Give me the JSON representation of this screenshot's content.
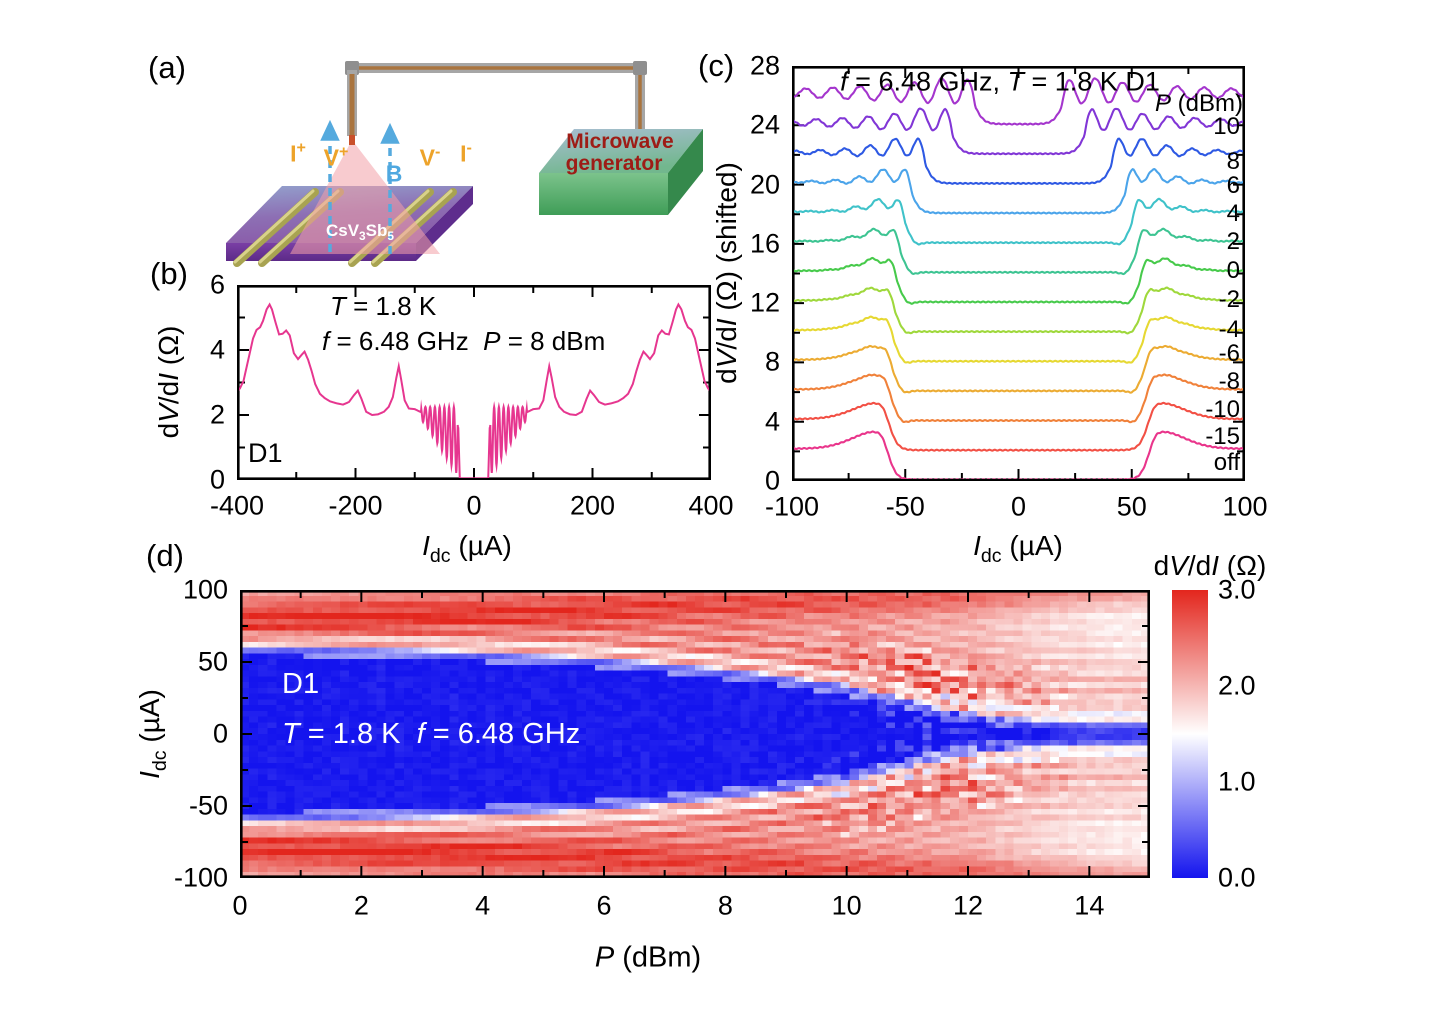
{
  "panels": {
    "a_label": "(a)",
    "b_label": "(b)",
    "c_label": "(c)",
    "d_label": "(d)"
  },
  "panel_a": {
    "electrode_labels": [
      "I^+^",
      "V^+^",
      "V^-^",
      "I^-^"
    ],
    "field_label": "B",
    "sample_label": "CsV~3~Sb~5~",
    "generator_line1": "Microwave",
    "generator_line2": "generator",
    "colors": {
      "electrode_text": "#eda32a",
      "field_text": "#4fa8e0",
      "generator_text": "#9e1c16",
      "substrate_front": "#6d35a0",
      "cone": "rgba(242,160,168,0.55)"
    }
  },
  "chart_data": [
    {
      "type": "line",
      "panel": "b",
      "device": "D1",
      "note1": "*T* = 1.8 K",
      "note2": "*f* = 6.48 GHz  *P* = 8 dBm",
      "xlabel": "*I*~dc~ (µA)",
      "ylabel": "d*V*/d*I* (Ω)",
      "xlim": [
        -400,
        400
      ],
      "ylim": [
        0,
        6
      ],
      "xticks": [
        -400,
        -200,
        0,
        200,
        400
      ],
      "xminor": [
        -300,
        -100,
        100,
        300
      ],
      "yticks": [
        0,
        2,
        4,
        6
      ],
      "yminor": [
        1,
        3,
        5
      ],
      "color": "#e6368f",
      "half_curve_anchors": [
        [
          0,
          0.05
        ],
        [
          24,
          0.05
        ],
        [
          26.5,
          1.6
        ],
        [
          91,
          2.1
        ],
        [
          100,
          2.18
        ],
        [
          110,
          2.2
        ],
        [
          117,
          2.45
        ],
        [
          123,
          3.1
        ],
        [
          127,
          3.5
        ],
        [
          131,
          3.15
        ],
        [
          137,
          2.55
        ],
        [
          144,
          2.25
        ],
        [
          152,
          2.1
        ],
        [
          162,
          2.02
        ],
        [
          172,
          2.0
        ],
        [
          182,
          2.1
        ],
        [
          190,
          2.5
        ],
        [
          196,
          2.75
        ],
        [
          203,
          2.6
        ],
        [
          211,
          2.4
        ],
        [
          221,
          2.32
        ],
        [
          232,
          2.36
        ],
        [
          243,
          2.42
        ],
        [
          252,
          2.52
        ],
        [
          260,
          2.65
        ],
        [
          268,
          2.95
        ],
        [
          274,
          3.35
        ],
        [
          280,
          3.7
        ],
        [
          286,
          3.95
        ],
        [
          291,
          3.85
        ],
        [
          297,
          3.72
        ],
        [
          304,
          3.9
        ],
        [
          311,
          4.45
        ],
        [
          317,
          4.6
        ],
        [
          323,
          4.5
        ],
        [
          329,
          4.48
        ],
        [
          335,
          4.85
        ],
        [
          341,
          5.25
        ],
        [
          345,
          5.4
        ],
        [
          350,
          5.25
        ],
        [
          356,
          4.9
        ],
        [
          361,
          4.7
        ],
        [
          367,
          4.62
        ],
        [
          373,
          4.35
        ],
        [
          381,
          3.7
        ],
        [
          389,
          3.05
        ],
        [
          395,
          2.82
        ],
        [
          400,
          2.72
        ]
      ],
      "oscillation": {
        "start": 27.5,
        "end": 89,
        "center0": 30,
        "period": 8,
        "top": 2.25,
        "low_start": 0.22,
        "low_end": 1.78
      }
    },
    {
      "type": "line-waterfall",
      "panel": "c",
      "title": "*f* = 6.48 GHz, *T* = 1.8 K D1",
      "legend_title": "*P* (dBm)",
      "xlabel": "*I*~dc~ (µA)",
      "ylabel": "d*V*/d*I* (Ω) (shifted)",
      "xlim": [
        -100,
        100
      ],
      "ylim": [
        0,
        28
      ],
      "xticks": [
        -100,
        -50,
        0,
        50,
        100
      ],
      "xminor": [
        -75,
        -25,
        25,
        75
      ],
      "yticks": [
        0,
        4,
        8,
        12,
        16,
        20,
        24,
        28
      ],
      "yminor": [
        2,
        6,
        10,
        14,
        18,
        22,
        26
      ],
      "normal_resistance_ohm": 2.1,
      "shift_step_ohm": 2,
      "curves": [
        {
          "label": "10",
          "color": "#a435cd",
          "shift": 24,
          "label_y": 23.9,
          "w": 19,
          "peak": 0.25,
          "oscA": 1.05,
          "oscL": 12,
          "oscT": 60
        },
        {
          "label": "8",
          "color": "#8136d6",
          "shift": 22,
          "label_y": 21.5,
          "w": 29,
          "peak": 0.35,
          "oscA": 1.0,
          "oscL": 11.5,
          "oscT": 42
        },
        {
          "label": "6",
          "color": "#2e59e3",
          "shift": 20,
          "label_y": 19.9,
          "w": 41,
          "peak": 0.5,
          "oscA": 0.92,
          "oscL": 11,
          "oscT": 26
        },
        {
          "label": "4",
          "color": "#4ba4ea",
          "shift": 18,
          "label_y": 18.0,
          "w": 47,
          "peak": 0.6,
          "oscA": 0.8,
          "oscL": 10.5,
          "oscT": 18
        },
        {
          "label": "2",
          "color": "#3fc2c9",
          "shift": 16,
          "label_y": 16.1,
          "w": 50,
          "peak": 0.7,
          "oscA": 0.68,
          "oscL": 10,
          "oscT": 14
        },
        {
          "label": "0",
          "color": "#3dc492",
          "shift": 14,
          "label_y": 14.2,
          "w": 52,
          "peak": 0.78,
          "oscA": 0.55,
          "oscL": 10,
          "oscT": 12
        },
        {
          "label": "-2",
          "color": "#47ca4b",
          "shift": 12,
          "label_y": 12.2,
          "w": 53.5,
          "peak": 0.85,
          "oscA": 0.45,
          "oscL": 9.5,
          "oscT": 10
        },
        {
          "label": "-4",
          "color": "#9fd83c",
          "shift": 10,
          "label_y": 10.2,
          "w": 54.5,
          "peak": 0.9,
          "oscA": 0.35,
          "oscL": 9.5,
          "oscT": 9
        },
        {
          "label": "-6",
          "color": "#e6d832",
          "shift": 8,
          "label_y": 8.6,
          "w": 55,
          "peak": 0.95,
          "oscA": 0.28,
          "oscL": 9,
          "oscT": 8
        },
        {
          "label": "-8",
          "color": "#ecab32",
          "shift": 6,
          "label_y": 6.7,
          "w": 55.5,
          "peak": 1.0,
          "oscA": 0.2,
          "oscL": 9,
          "oscT": 7
        },
        {
          "label": "-10",
          "color": "#f0813a",
          "shift": 4,
          "label_y": 4.8,
          "w": 56,
          "peak": 1.08,
          "oscA": 0.12,
          "oscL": 9,
          "oscT": 6
        },
        {
          "label": "-15",
          "color": "#f25045",
          "shift": 2,
          "label_y": 3.0,
          "w": 56.5,
          "peak": 1.15,
          "oscA": 0,
          "oscL": 9,
          "oscT": 6
        },
        {
          "label": "off",
          "color": "#e9358b",
          "shift": 0,
          "label_y": 1.2,
          "w": 57,
          "peak": 1.22,
          "oscA": 0,
          "oscL": 9,
          "oscT": 6
        }
      ]
    },
    {
      "type": "heatmap",
      "panel": "d",
      "device": "D1",
      "note": "*T* = 1.8 K  *f* = 6.48 GHz",
      "xlabel": "*P* (dBm)",
      "ylabel": "*I*~dc~ (µA)",
      "xlim": [
        0,
        15
      ],
      "ylim": [
        -100,
        100
      ],
      "xticks": [
        0,
        2,
        4,
        6,
        8,
        10,
        12,
        14
      ],
      "xminor": [
        1,
        3,
        5,
        7,
        9,
        11,
        13,
        15
      ],
      "yticks": [
        -100,
        -50,
        0,
        50,
        100
      ],
      "yminor": [
        -75,
        -25,
        25,
        75
      ],
      "critical_current_vs_power": [
        [
          0,
          55
        ],
        [
          2,
          53
        ],
        [
          4,
          50
        ],
        [
          6,
          45.5
        ],
        [
          7,
          42
        ],
        [
          8,
          38
        ],
        [
          9,
          33
        ],
        [
          10,
          27
        ],
        [
          10.5,
          22
        ],
        [
          11,
          17
        ],
        [
          11.5,
          12
        ],
        [
          12,
          8
        ],
        [
          12.5,
          5
        ],
        [
          13,
          2.5
        ],
        [
          14,
          1
        ],
        [
          15,
          0.5
        ]
      ],
      "stripe_period_uA": 9.5,
      "grid_step_dBm": 0.15,
      "grid_step_uA": 4,
      "colorbar": {
        "title": "d*V*/d*I* (Ω)",
        "tick_labels": [
          "3.0",
          "2.0",
          "1.0",
          "0.0"
        ],
        "vmin": 0.0,
        "vmax": 3.0,
        "color_low": "#1414ee",
        "color_mid": "#ffffff",
        "color_high": "#e3261d"
      }
    }
  ]
}
